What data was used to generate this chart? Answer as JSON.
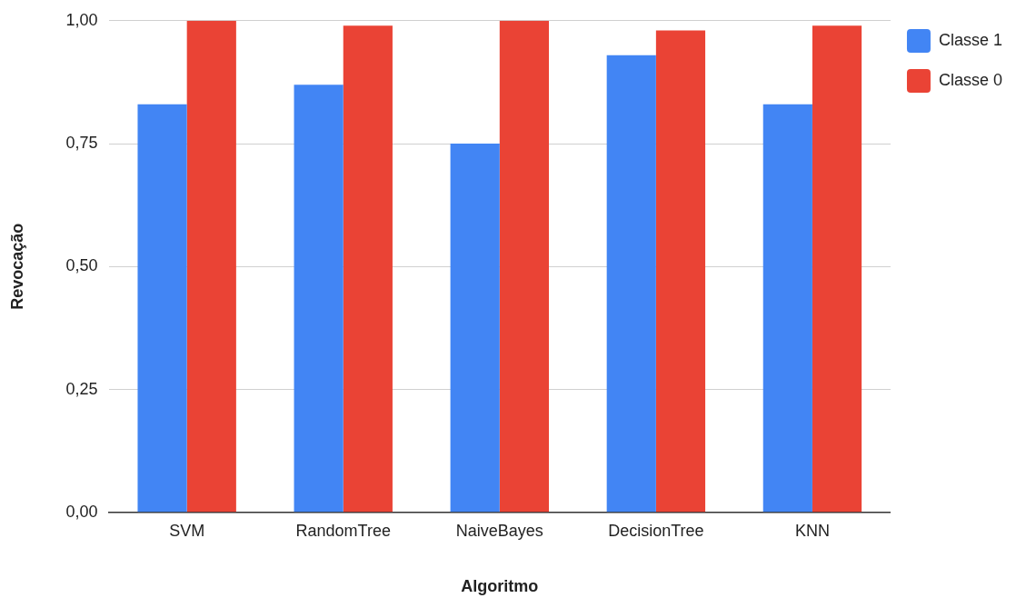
{
  "chart_data": {
    "type": "bar",
    "xlabel": "Algoritmo",
    "ylabel": "Revocação",
    "categories": [
      "SVM",
      "RandomTree",
      "NaiveBayes",
      "DecisionTree",
      "KNN"
    ],
    "series": [
      {
        "name": "Classe 1",
        "color": "#4285f4",
        "values": [
          0.83,
          0.87,
          0.75,
          0.93,
          0.83
        ]
      },
      {
        "name": "Classe 0",
        "color": "#ea4335",
        "values": [
          1.0,
          0.99,
          1.0,
          0.98,
          0.99
        ]
      }
    ],
    "ylim": [
      0,
      1
    ],
    "yticks": [
      {
        "value": 0,
        "label": "0,00"
      },
      {
        "value": 0.25,
        "label": "0,25"
      },
      {
        "value": 0.5,
        "label": "0,50"
      },
      {
        "value": 0.75,
        "label": "0,75"
      },
      {
        "value": 1,
        "label": "1,00"
      }
    ],
    "grid": "y",
    "legend": "top right"
  }
}
